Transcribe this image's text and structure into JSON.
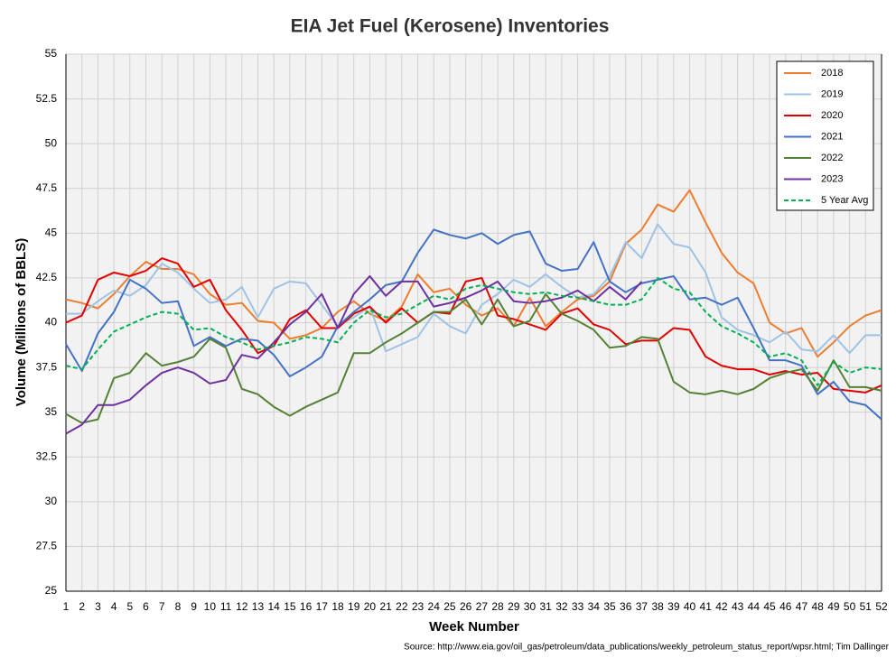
{
  "chart_data": {
    "type": "line",
    "title": "EIA Jet Fuel (Kerosene) Inventories",
    "x_label": "Week Number",
    "y_label": "Volume (Millions of BBLS)",
    "source": "Source: http://www.eia.gov/oil_gas/petroleum/data_publications/weekly_petroleum_status_report/wpsr.html; Tim Dallinger",
    "x": [
      1,
      2,
      3,
      4,
      5,
      6,
      7,
      8,
      9,
      10,
      11,
      12,
      13,
      14,
      15,
      16,
      17,
      18,
      19,
      20,
      21,
      22,
      23,
      24,
      25,
      26,
      27,
      28,
      29,
      30,
      31,
      32,
      33,
      34,
      35,
      36,
      37,
      38,
      39,
      40,
      41,
      42,
      43,
      44,
      45,
      46,
      47,
      48,
      49,
      50,
      51,
      52
    ],
    "xlim": [
      1,
      52
    ],
    "xticks": [
      1,
      2,
      3,
      4,
      5,
      6,
      7,
      8,
      9,
      10,
      11,
      12,
      13,
      14,
      15,
      16,
      17,
      18,
      19,
      20,
      21,
      22,
      23,
      24,
      25,
      26,
      27,
      28,
      29,
      30,
      31,
      32,
      33,
      34,
      35,
      36,
      37,
      38,
      39,
      40,
      41,
      42,
      43,
      44,
      45,
      46,
      47,
      48,
      49,
      50,
      51,
      52
    ],
    "ylim": [
      25,
      55
    ],
    "yticks": [
      25,
      27.5,
      30,
      32.5,
      35,
      37.5,
      40,
      42.5,
      45,
      47.5,
      50,
      52.5,
      55
    ],
    "grid": true,
    "legend": "upper right",
    "series": [
      {
        "name": "2018",
        "color": "#ed7d31",
        "dashed": false,
        "values": [
          41.3,
          41.1,
          40.8,
          41.6,
          42.6,
          43.4,
          43.0,
          43.0,
          42.7,
          41.6,
          41.0,
          41.1,
          40.1,
          40.0,
          39.1,
          39.3,
          39.7,
          40.6,
          41.2,
          40.5,
          40.1,
          40.9,
          42.7,
          41.7,
          41.9,
          41.0,
          40.4,
          40.8,
          39.8,
          41.4,
          39.8,
          40.6,
          41.3,
          41.5,
          42.3,
          44.4,
          45.2,
          46.6,
          46.2,
          47.4,
          45.6,
          43.9,
          42.8,
          42.2,
          40.0,
          39.4,
          39.7,
          38.1,
          38.9,
          39.8,
          40.4,
          40.7
        ]
      },
      {
        "name": "2019",
        "color": "#9dc3e6",
        "dashed": false,
        "values": [
          40.5,
          40.5,
          41.2,
          41.8,
          41.5,
          42.1,
          43.3,
          42.8,
          41.9,
          41.1,
          41.3,
          42.0,
          40.3,
          41.9,
          42.3,
          42.2,
          41.0,
          39.8,
          40.3,
          40.9,
          38.4,
          38.8,
          39.2,
          40.5,
          39.8,
          39.4,
          41.0,
          41.6,
          42.4,
          42.0,
          42.7,
          42.0,
          41.4,
          41.6,
          42.6,
          44.5,
          43.6,
          45.5,
          44.4,
          44.2,
          42.8,
          40.3,
          39.6,
          39.3,
          38.9,
          39.5,
          38.5,
          38.4,
          39.3,
          38.3,
          39.3,
          39.3
        ]
      },
      {
        "name": "2020",
        "color": "#e00000",
        "dashed": false,
        "values": [
          40.0,
          40.4,
          42.4,
          42.8,
          42.6,
          42.9,
          43.6,
          43.3,
          42.0,
          42.4,
          40.7,
          39.6,
          38.3,
          38.7,
          40.2,
          40.7,
          39.7,
          39.7,
          40.5,
          40.9,
          40.0,
          40.8,
          40.0,
          40.6,
          40.5,
          42.3,
          42.5,
          40.4,
          40.2,
          39.9,
          39.6,
          40.5,
          40.8,
          39.9,
          39.6,
          38.8,
          39.0,
          39.0,
          39.7,
          39.6,
          38.1,
          37.6,
          37.4,
          37.4,
          37.1,
          37.3,
          37.1,
          37.2,
          36.3,
          36.2,
          36.1,
          36.5
        ]
      },
      {
        "name": "2021",
        "color": "#4472c4",
        "dashed": false,
        "values": [
          38.8,
          37.3,
          39.4,
          40.6,
          42.4,
          41.9,
          41.1,
          41.2,
          38.7,
          39.2,
          38.7,
          39.1,
          39.0,
          38.2,
          37.0,
          37.5,
          38.1,
          39.8,
          40.6,
          41.3,
          42.1,
          42.3,
          43.9,
          45.2,
          44.9,
          44.7,
          45.0,
          44.4,
          44.9,
          45.1,
          43.3,
          42.9,
          43.0,
          44.5,
          42.3,
          41.7,
          42.2,
          42.4,
          42.6,
          41.3,
          41.4,
          41.0,
          41.4,
          39.7,
          37.9,
          37.9,
          37.6,
          36.0,
          36.7,
          35.6,
          35.4,
          34.6
        ]
      },
      {
        "name": "2022",
        "color": "#548235",
        "dashed": false,
        "values": [
          34.9,
          34.4,
          34.6,
          36.9,
          37.2,
          38.3,
          37.6,
          37.8,
          38.1,
          39.1,
          38.6,
          36.3,
          36.0,
          35.3,
          34.8,
          35.3,
          35.7,
          36.1,
          38.3,
          38.3,
          38.9,
          39.4,
          40.0,
          40.6,
          40.6,
          41.3,
          39.9,
          41.3,
          39.8,
          40.1,
          41.6,
          40.5,
          40.1,
          39.6,
          38.6,
          38.7,
          39.2,
          39.1,
          36.7,
          36.1,
          36.0,
          36.2,
          36.0,
          36.3,
          36.9,
          37.2,
          37.4,
          36.2,
          37.9,
          36.4,
          36.4,
          36.2
        ]
      },
      {
        "name": "2023",
        "color": "#7030a0",
        "dashed": false,
        "values": [
          33.8,
          34.3,
          35.4,
          35.4,
          35.7,
          36.5,
          37.2,
          37.5,
          37.2,
          36.6,
          36.8,
          38.2,
          38.0,
          38.9,
          39.9,
          40.6,
          41.6,
          39.7,
          41.6,
          42.6,
          41.5,
          42.3,
          42.3,
          40.9,
          41.1,
          41.4,
          41.8,
          42.3,
          41.2,
          41.1,
          41.2,
          41.4,
          41.8,
          41.2,
          42.0,
          41.3,
          42.3,
          null,
          null,
          null,
          null,
          null,
          null,
          null,
          null,
          null,
          null,
          null,
          null,
          null,
          null,
          null
        ]
      },
      {
        "name": "5 Year Avg",
        "color": "#00b050",
        "dashed": true,
        "values": [
          37.6,
          37.4,
          38.5,
          39.5,
          39.9,
          40.3,
          40.6,
          40.5,
          39.6,
          39.7,
          39.2,
          38.9,
          38.5,
          38.7,
          38.9,
          39.2,
          39.1,
          38.9,
          40.0,
          40.7,
          40.3,
          40.5,
          41.0,
          41.5,
          41.3,
          41.9,
          42.1,
          41.9,
          41.7,
          41.6,
          41.7,
          41.5,
          41.4,
          41.2,
          41.0,
          41.0,
          41.3,
          42.5,
          41.9,
          41.7,
          40.6,
          39.8,
          39.4,
          38.9,
          38.1,
          38.3,
          37.9,
          36.5,
          37.8,
          37.2,
          37.5,
          37.4
        ]
      }
    ]
  }
}
